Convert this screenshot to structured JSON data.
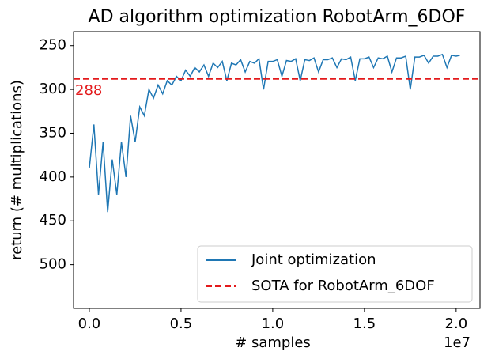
{
  "chart_data": {
    "type": "line",
    "title": "AD algorithm optimization RobotArm_6DOF",
    "xlabel": "# samples",
    "ylabel": "return (# multiplications)",
    "x_offset_label": "1e7",
    "x": [
      0,
      250000,
      500000,
      750000,
      1000000,
      1250000,
      1500000,
      1750000,
      2000000,
      2250000,
      2500000,
      2750000,
      3000000,
      3250000,
      3500000,
      3750000,
      4000000,
      4250000,
      4500000,
      4750000,
      5000000,
      5250000,
      5500000,
      5750000,
      6000000,
      6250000,
      6500000,
      6750000,
      7000000,
      7250000,
      7500000,
      7750000,
      8000000,
      8250000,
      8500000,
      8750000,
      9000000,
      9250000,
      9500000,
      9750000,
      10000000,
      10250000,
      10500000,
      10750000,
      11000000,
      11250000,
      11500000,
      11750000,
      12000000,
      12250000,
      12500000,
      12750000,
      13000000,
      13250000,
      13500000,
      13750000,
      14000000,
      14250000,
      14500000,
      14750000,
      15000000,
      15250000,
      15500000,
      15750000,
      16000000,
      16250000,
      16500000,
      16750000,
      17000000,
      17250000,
      17500000,
      17750000,
      18000000,
      18250000,
      18500000,
      18750000,
      19000000,
      19250000,
      19500000,
      19750000,
      20000000,
      20200000
    ],
    "series": [
      {
        "name": "Joint optimization",
        "color": "#1f77b4",
        "values": [
          390,
          340,
          420,
          360,
          440,
          380,
          420,
          360,
          400,
          330,
          360,
          320,
          330,
          300,
          310,
          295,
          305,
          290,
          295,
          285,
          290,
          278,
          285,
          275,
          280,
          272,
          285,
          270,
          275,
          268,
          290,
          270,
          272,
          266,
          280,
          268,
          270,
          265,
          300,
          268,
          268,
          266,
          285,
          267,
          268,
          265,
          290,
          266,
          267,
          264,
          280,
          266,
          266,
          264,
          275,
          265,
          266,
          263,
          290,
          265,
          265,
          263,
          275,
          264,
          265,
          262,
          280,
          264,
          264,
          262,
          300,
          263,
          263,
          261,
          270,
          262,
          262,
          260,
          275,
          261,
          262,
          261
        ]
      }
    ],
    "reference_line": {
      "name": "SOTA for RobotArm_6DOF",
      "value": 288,
      "color": "#e31a1c"
    },
    "xlim": [
      -860000,
      21300000
    ],
    "xticks": [
      {
        "value": 0,
        "label": "0.0"
      },
      {
        "value": 5000000,
        "label": "0.5"
      },
      {
        "value": 10000000,
        "label": "1.0"
      },
      {
        "value": 15000000,
        "label": "1.5"
      },
      {
        "value": 20000000,
        "label": "2.0"
      }
    ],
    "ylim": [
      550,
      234
    ],
    "yticks": [
      250,
      300,
      350,
      400,
      450,
      500
    ],
    "legend": "lower right"
  }
}
